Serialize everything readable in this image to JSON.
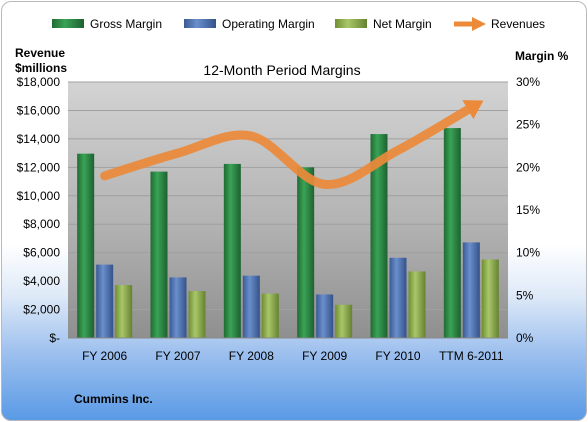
{
  "legend": [
    {
      "label": "Gross Margin",
      "color": "#2e8b46"
    },
    {
      "label": "Operating Margin",
      "color": "#4f73b3"
    },
    {
      "label": "Net Margin",
      "color": "#8fb049"
    },
    {
      "label": "Revenues",
      "color": "#ec8a3a"
    }
  ],
  "left_axis_title": [
    "Revenue",
    "$millions"
  ],
  "right_axis_title": "Margin %",
  "company": "Cummins Inc.",
  "chart_data": {
    "type": "bar",
    "title": "12-Month Period Margins",
    "categories": [
      "FY 2006",
      "FY 2007",
      "FY 2008",
      "FY 2009",
      "FY 2010",
      "TTM 6-2011"
    ],
    "y_left": {
      "label": "Revenue $millions",
      "range": [
        0,
        18000
      ],
      "ticks": [
        "$-",
        "$2,000",
        "$4,000",
        "$6,000",
        "$8,000",
        "$10,000",
        "$12,000",
        "$14,000",
        "$16,000",
        "$18,000"
      ]
    },
    "y_right": {
      "label": "Margin %",
      "range": [
        0,
        30
      ],
      "ticks": [
        "0%",
        "5%",
        "10%",
        "15%",
        "20%",
        "25%",
        "30%"
      ]
    },
    "series": [
      {
        "name": "Gross Margin",
        "axis": "right",
        "type": "bar",
        "color": "#2e8b46",
        "values": [
          21.6,
          19.5,
          20.4,
          20.0,
          23.9,
          24.6
        ]
      },
      {
        "name": "Operating Margin",
        "axis": "right",
        "type": "bar",
        "color": "#4f73b3",
        "values": [
          8.6,
          7.1,
          7.3,
          5.1,
          9.4,
          11.2
        ]
      },
      {
        "name": "Net Margin",
        "axis": "right",
        "type": "bar",
        "color": "#8fb049",
        "values": [
          6.2,
          5.5,
          5.2,
          3.9,
          7.8,
          9.2
        ]
      },
      {
        "name": "Revenues",
        "axis": "left",
        "type": "line",
        "color": "#ec8a3a",
        "values": [
          11400,
          13000,
          14200,
          10800,
          13200,
          16200
        ]
      }
    ],
    "grid": true,
    "legend_position": "top"
  }
}
